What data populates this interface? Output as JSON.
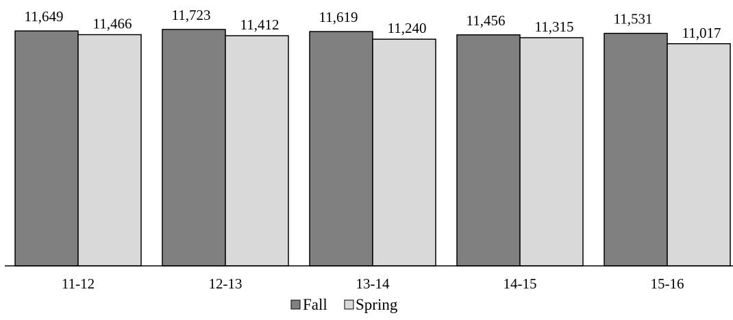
{
  "chart_data": {
    "type": "bar",
    "title": "",
    "xlabel": "",
    "ylabel": "",
    "categories": [
      "11-12",
      "12-13",
      "13-14",
      "14-15",
      "15-16"
    ],
    "series": [
      {
        "name": "Fall",
        "values": [
          11649,
          11723,
          11619,
          11456,
          11531
        ],
        "labels": [
          "11,649",
          "11,723",
          "11,619",
          "11,456",
          "11,531"
        ],
        "color": "#808080"
      },
      {
        "name": "Spring",
        "values": [
          11466,
          11412,
          11240,
          11315,
          11017
        ],
        "labels": [
          "11,466",
          "11,412",
          "11,240",
          "11,315",
          "11,017"
        ],
        "color": "#d9d9d9"
      }
    ],
    "ylim": [
      0,
      12000
    ],
    "grid": false,
    "legend_position": "bottom-center",
    "axis_color": "#000000"
  }
}
